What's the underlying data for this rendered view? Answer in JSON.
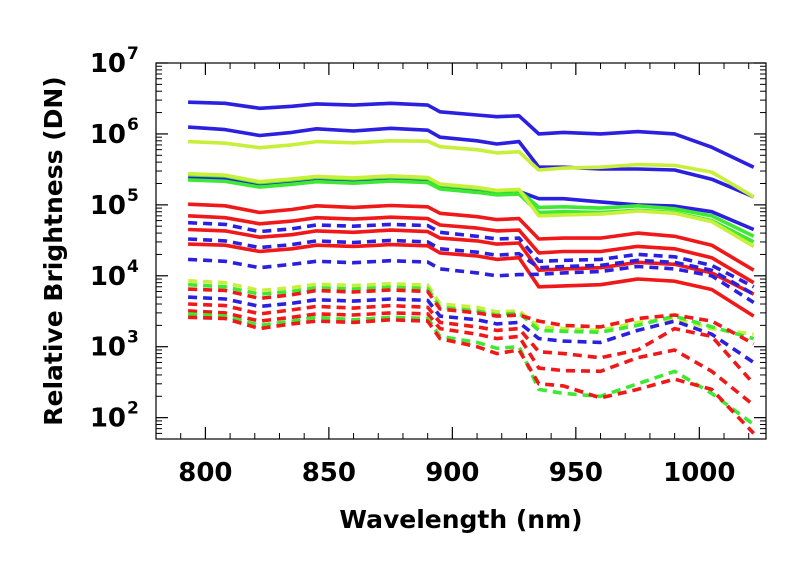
{
  "chart_data": {
    "type": "line",
    "title": "",
    "xlabel": "Wavelength (nm)",
    "ylabel": "Relative Brightness (DN)",
    "xlim": [
      780,
      1027
    ],
    "ylim": [
      50,
      10000000
    ],
    "yscale": "log",
    "grid": false,
    "legend": "none",
    "xticks": [
      800,
      850,
      900,
      950,
      1000
    ],
    "xtick_labels": [
      "800",
      "850",
      "900",
      "950",
      "1000"
    ],
    "yticks": [
      100,
      1000,
      10000,
      100000,
      1000000,
      10000000
    ],
    "ytick_exponents": [
      "2",
      "3",
      "4",
      "5",
      "6",
      "7"
    ],
    "ytick_base": "10",
    "colors": {
      "blue": "#2b1fe0",
      "green": "#3ee833",
      "yellow": "#c8f03a",
      "red": "#f01818"
    },
    "x": [
      793,
      808,
      822,
      835,
      845,
      860,
      875,
      890,
      895,
      910,
      918,
      927,
      935,
      945,
      960,
      975,
      990,
      1005,
      1022
    ],
    "series": [
      {
        "color": "blue",
        "style": "solid",
        "values": [
          2800000,
          2700000,
          2300000,
          2450000,
          2650000,
          2550000,
          2700000,
          2550000,
          2050000,
          1850000,
          1750000,
          1800000,
          1000000,
          1050000,
          1000000,
          1080000,
          1000000,
          650000,
          340000
        ]
      },
      {
        "color": "blue",
        "style": "solid",
        "values": [
          1250000,
          1150000,
          950000,
          1050000,
          1180000,
          1100000,
          1200000,
          1130000,
          900000,
          800000,
          720000,
          780000,
          340000,
          340000,
          320000,
          320000,
          310000,
          230000,
          130000
        ]
      },
      {
        "color": "yellow",
        "style": "solid",
        "values": [
          780000,
          740000,
          640000,
          700000,
          780000,
          750000,
          800000,
          790000,
          660000,
          600000,
          540000,
          560000,
          310000,
          330000,
          340000,
          370000,
          360000,
          290000,
          130000
        ]
      },
      {
        "color": "blue",
        "style": "solid",
        "values": [
          240000,
          230000,
          195000,
          212000,
          237000,
          224000,
          240000,
          230000,
          183000,
          165000,
          150000,
          155000,
          122000,
          122000,
          110000,
          100000,
          96000,
          80000,
          45000
        ]
      },
      {
        "color": "green",
        "style": "solid",
        "values": [
          265000,
          255000,
          205000,
          225000,
          245000,
          232000,
          248000,
          236000,
          190000,
          170000,
          155000,
          160000,
          92000,
          94000,
          90000,
          97000,
          88000,
          70000,
          36000
        ]
      },
      {
        "color": "green",
        "style": "solid",
        "values": [
          225000,
          215000,
          178000,
          195000,
          212000,
          202000,
          216000,
          206000,
          168000,
          150000,
          138000,
          142000,
          78000,
          80000,
          78000,
          84000,
          78000,
          60000,
          30000
        ]
      },
      {
        "color": "yellow",
        "style": "solid",
        "values": [
          275000,
          262000,
          212000,
          232000,
          252000,
          240000,
          256000,
          244000,
          196000,
          176000,
          160000,
          165000,
          70000,
          72000,
          74000,
          82000,
          76000,
          58000,
          26000
        ]
      },
      {
        "color": "red",
        "style": "solid",
        "values": [
          102000,
          97000,
          78000,
          86000,
          97000,
          92000,
          98000,
          94000,
          76000,
          68000,
          62000,
          64000,
          33000,
          34000,
          34000,
          40000,
          36000,
          27000,
          12000
        ]
      },
      {
        "color": "red",
        "style": "solid",
        "values": [
          70000,
          66000,
          54000,
          59000,
          66000,
          63000,
          67000,
          64000,
          52000,
          47000,
          43000,
          44000,
          21000,
          22000,
          22000,
          26000,
          24000,
          18000,
          8000
        ]
      },
      {
        "color": "red",
        "style": "solid",
        "values": [
          45000,
          43000,
          35000,
          38000,
          43000,
          41000,
          44000,
          42000,
          34000,
          31000,
          28000,
          29000,
          12000,
          12500,
          13000,
          15500,
          14500,
          11000,
          5500
        ]
      },
      {
        "color": "red",
        "style": "solid",
        "values": [
          28000,
          27000,
          22000,
          24000,
          27000,
          26000,
          27500,
          26500,
          21000,
          19000,
          17000,
          18000,
          7000,
          7200,
          7500,
          9000,
          8400,
          6400,
          2700
        ]
      },
      {
        "color": "blue",
        "style": "dashed",
        "values": [
          56000,
          53000,
          42000,
          46000,
          52000,
          50000,
          53000,
          51000,
          41000,
          36000,
          33000,
          34000,
          16000,
          16500,
          17000,
          20000,
          18500,
          14000,
          7000
        ]
      },
      {
        "color": "blue",
        "style": "dashed",
        "values": [
          33000,
          31000,
          25000,
          27500,
          31000,
          29500,
          31500,
          30000,
          24000,
          21500,
          19500,
          20500,
          13000,
          13500,
          14000,
          16500,
          15500,
          12000,
          5500
        ]
      },
      {
        "color": "blue",
        "style": "dashed",
        "values": [
          17000,
          16000,
          13000,
          14500,
          16000,
          15300,
          16300,
          15600,
          12500,
          11000,
          10000,
          10400,
          10500,
          11000,
          11500,
          13500,
          12500,
          10000,
          4200
        ]
      },
      {
        "color": "yellow",
        "style": "dashed",
        "values": [
          8500,
          8000,
          6200,
          6800,
          7600,
          7300,
          7700,
          7400,
          4000,
          3600,
          3100,
          3200,
          1900,
          1800,
          1700,
          2200,
          2500,
          1800,
          1500
        ]
      },
      {
        "color": "green",
        "style": "dashed",
        "values": [
          7500,
          7000,
          5500,
          6000,
          6800,
          6500,
          6900,
          6600,
          3600,
          3200,
          2800,
          3000,
          1700,
          1650,
          1600,
          2000,
          2700,
          1900,
          1300
        ]
      },
      {
        "color": "red",
        "style": "dashed",
        "values": [
          6500,
          6200,
          4800,
          5400,
          6200,
          5900,
          6300,
          6000,
          3400,
          3000,
          2700,
          2800,
          2300,
          2000,
          1900,
          2500,
          2800,
          2300,
          1100
        ]
      },
      {
        "color": "blue",
        "style": "dashed",
        "values": [
          5000,
          4700,
          3700,
          4100,
          4600,
          4400,
          4700,
          4500,
          2700,
          2400,
          2100,
          2200,
          1300,
          1200,
          1150,
          1700,
          2300,
          1500,
          600
        ]
      },
      {
        "color": "red",
        "style": "dashed",
        "values": [
          4000,
          3800,
          2900,
          3300,
          3700,
          3500,
          3800,
          3600,
          2200,
          1900,
          1700,
          1800,
          850,
          800,
          700,
          900,
          1800,
          1400,
          300
        ]
      },
      {
        "color": "red",
        "style": "dashed",
        "values": [
          3200,
          3000,
          2300,
          2600,
          2900,
          2800,
          3000,
          2900,
          1800,
          1500,
          1300,
          1400,
          500,
          460,
          450,
          700,
          900,
          450,
          150
        ]
      },
      {
        "color": "green",
        "style": "dashed",
        "values": [
          2900,
          2700,
          2000,
          2300,
          2600,
          2400,
          2600,
          2500,
          1400,
          1150,
          950,
          1000,
          250,
          220,
          200,
          300,
          450,
          220,
          80
        ]
      },
      {
        "color": "red",
        "style": "dashed",
        "values": [
          2600,
          2500,
          1800,
          2100,
          2300,
          2200,
          2400,
          2300,
          1300,
          1000,
          800,
          900,
          300,
          280,
          190,
          250,
          350,
          250,
          60
        ]
      }
    ]
  }
}
